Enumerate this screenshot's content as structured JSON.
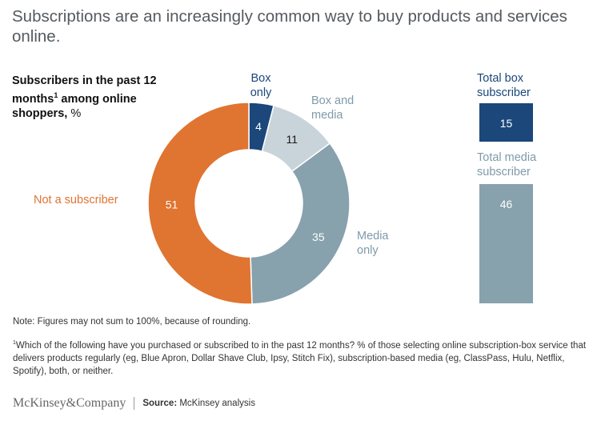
{
  "headline": "Subscriptions are an increasingly common way to buy products and services online.",
  "subtitle": {
    "text": "Subscribers in the past 12 months",
    "footnote_mark": "1",
    "text2": " among online shoppers,",
    "unit": " %"
  },
  "colors": {
    "box_only": "#1b477a",
    "box_and_media": "#c9d4da",
    "media_only": "#87a1ad",
    "not_subscriber": "#e07431"
  },
  "chart_data": [
    {
      "type": "pie",
      "style": "donut",
      "categories": [
        "Box only",
        "Box and media",
        "Media only",
        "Not a subscriber"
      ],
      "values": [
        4,
        11,
        35,
        51
      ],
      "start": "12 o'clock, clockwise"
    },
    {
      "type": "bar",
      "categories": [
        "Total box subscriber",
        "Total media subscriber"
      ],
      "values": [
        15,
        46
      ]
    }
  ],
  "labels": {
    "box_only": "Box only",
    "box_and_media": "Box and media",
    "media_only": "Media only",
    "not_subscriber": "Not a subscriber",
    "total_box": "Total box subscriber",
    "total_media": "Total media subscriber"
  },
  "note": "Note: Figures may not sum to 100%, because of rounding.",
  "footnote": {
    "mark": "1",
    "text": "Which of the following have you purchased or subscribed to in the past 12 months? % of those selecting online subscription-box service that delivers products regularly (eg, Blue Apron, Dollar Shave Club, Ipsy, Stitch Fix), subscription-based media (eg, ClassPass, Hulu, Netflix, Spotify), both, or neither."
  },
  "footer": {
    "logo": "McKinsey&Company",
    "source_label": "Source:",
    "source_text": " McKinsey analysis"
  }
}
